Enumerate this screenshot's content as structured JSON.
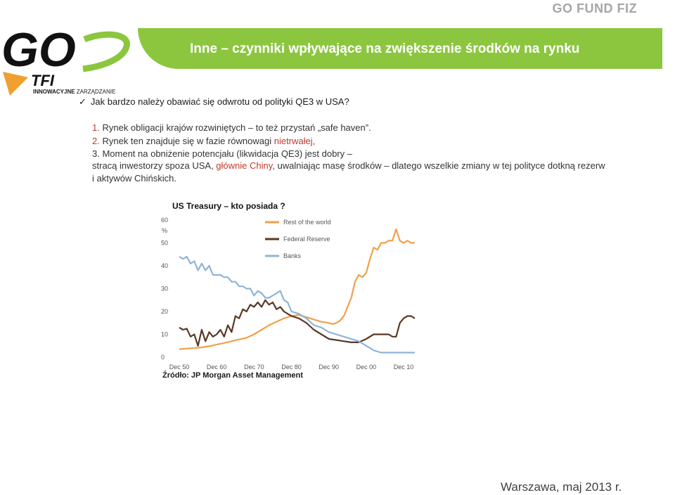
{
  "header": {
    "brand": "GO FUND FIZ",
    "title": "Inne – czynniki wpływające na zwiększenie środków na rynku"
  },
  "logo": {
    "main": "GO",
    "sub": "TFI",
    "tagline_bold": "INNOWACYJNE",
    "tagline_light": "ZARZĄDZANIE"
  },
  "content": {
    "question": "Jak bardzo należy obawiać się odwrotu od polityki QE3 w USA?",
    "point1_prefix": "1. ",
    "point1": "Rynek obligacji krajów rozwiniętych – to też przystań „safe haven”.",
    "point2_prefix": "2. ",
    "point2_a": "Rynek ten znajduje się w fazie równowagi ",
    "point2_b": "nietrwałej,",
    "point3_a": "3. Moment na obniżenie potencjału (likwidacja QE3) jest dobry –",
    "point3_b1": "stracą inwestorzy spoza USA, ",
    "point3_b2": "głównie Chiny",
    "point3_b3": ", uwalniając masę środków – dlatego wszelkie zmiany w tej polityce dotkną rezerw",
    "point3_c": "i aktywów Chińskich."
  },
  "chart_data": {
    "type": "line",
    "title": "US Treasury – kto posiada ?",
    "ylabel": "%",
    "ylim": [
      0,
      60
    ],
    "yticks": [
      "0",
      "10",
      "20",
      "30",
      "40",
      "50",
      "60"
    ],
    "xticks": [
      "Dec 50",
      "Dec 60",
      "Dec 70",
      "Dec 80",
      "Dec 90",
      "Dec 00",
      "Dec 10"
    ],
    "xlim": [
      1950,
      2013
    ],
    "series": [
      {
        "name": "Rest of the world",
        "color": "#f0a04b",
        "x": [
          1950,
          1952,
          1954,
          1956,
          1958,
          1960,
          1962,
          1964,
          1966,
          1968,
          1970,
          1972,
          1974,
          1976,
          1978,
          1980,
          1982,
          1984,
          1986,
          1988,
          1990,
          1991,
          1992,
          1993,
          1994,
          1995,
          1996,
          1997,
          1998,
          1999,
          2000,
          2001,
          2002,
          2003,
          2004,
          2005,
          2006,
          2007,
          2008,
          2009,
          2010,
          2011,
          2012,
          2013
        ],
        "values": [
          3.5,
          3.8,
          4,
          4.3,
          4.8,
          5.5,
          6.2,
          7,
          7.8,
          8.5,
          10,
          12,
          14,
          15.5,
          17,
          18,
          18.5,
          17.5,
          16.5,
          15.5,
          15,
          14.5,
          15,
          16,
          18,
          22,
          26,
          33,
          36,
          35,
          37,
          43,
          48,
          47,
          50,
          50,
          51,
          51,
          56,
          51,
          50,
          51,
          50,
          50
        ]
      },
      {
        "name": "Federal Reserve",
        "color": "#5a3825",
        "x": [
          1950,
          1951,
          1952,
          1953,
          1954,
          1955,
          1956,
          1957,
          1958,
          1959,
          1960,
          1961,
          1962,
          1963,
          1964,
          1965,
          1966,
          1967,
          1968,
          1969,
          1970,
          1971,
          1972,
          1973,
          1974,
          1975,
          1976,
          1977,
          1978,
          1979,
          1980,
          1982,
          1984,
          1986,
          1988,
          1990,
          1992,
          1994,
          1996,
          1998,
          2000,
          2002,
          2004,
          2006,
          2007,
          2008,
          2009,
          2010,
          2011,
          2012,
          2013
        ],
        "values": [
          13,
          12,
          12.5,
          9,
          10,
          5,
          12,
          7,
          11,
          9,
          10,
          12,
          9,
          14,
          11,
          18,
          17,
          21,
          20,
          23,
          22,
          24,
          22,
          25,
          23,
          24,
          21,
          22,
          20,
          19,
          18,
          17,
          15,
          12,
          10,
          8,
          7.5,
          7,
          6.5,
          6.5,
          8,
          10,
          10,
          10,
          9,
          9,
          15,
          17,
          18,
          18,
          17
        ]
      },
      {
        "name": "Banks",
        "color": "#8db4d8",
        "x": [
          1950,
          1951,
          1952,
          1953,
          1954,
          1955,
          1956,
          1957,
          1958,
          1959,
          1960,
          1961,
          1962,
          1963,
          1964,
          1965,
          1966,
          1967,
          1968,
          1969,
          1970,
          1971,
          1972,
          1973,
          1974,
          1975,
          1976,
          1977,
          1978,
          1979,
          1980,
          1982,
          1984,
          1986,
          1988,
          1990,
          1992,
          1994,
          1996,
          1998,
          2000,
          2002,
          2004,
          2006,
          2008,
          2010,
          2011,
          2012,
          2013
        ],
        "values": [
          44,
          43,
          44,
          41,
          42,
          38,
          41,
          38,
          40,
          36,
          36,
          36,
          35,
          35,
          33,
          33,
          31,
          31,
          30,
          30,
          27,
          29,
          28,
          26,
          26,
          27,
          28,
          29,
          25,
          24,
          20,
          19,
          17,
          14,
          13,
          11,
          10,
          9,
          8,
          7,
          5,
          3,
          2,
          2,
          2,
          2,
          2,
          2,
          2
        ]
      }
    ]
  },
  "source": "Źródło: JP Morgan Asset Management",
  "footer": "Warszawa, maj 2013 r."
}
